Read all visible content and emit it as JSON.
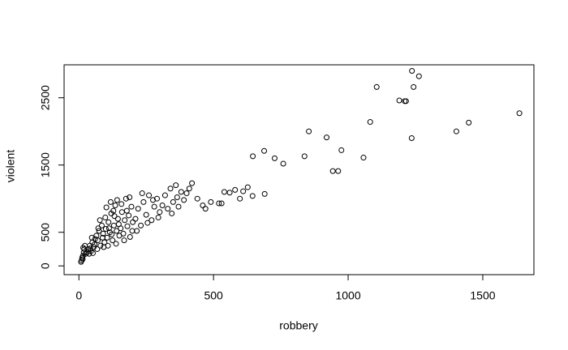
{
  "chart_data": {
    "type": "scatter",
    "xlabel": "robbery",
    "ylabel": "violent",
    "xlim": [
      -55,
      1690
    ],
    "ylim": [
      -130,
      2990
    ],
    "xticks": [
      0,
      500,
      1000,
      1500
    ],
    "yticks": [
      0,
      500,
      1500,
      2500
    ],
    "color": "#000000",
    "x": [
      1636,
      1448,
      1402,
      1263,
      1237,
      1243,
      1106,
      1190,
      1210,
      1215,
      1236,
      1082,
      1057,
      975,
      963,
      943,
      920,
      854,
      838,
      759,
      727,
      688,
      646,
      690,
      645,
      627,
      610,
      598,
      580,
      560,
      540,
      520,
      530,
      490,
      470,
      460,
      440,
      420,
      410,
      400,
      10,
      12,
      15,
      18,
      20,
      22,
      25,
      8,
      14,
      16,
      30,
      35,
      40,
      45,
      50,
      55,
      60,
      38,
      48,
      58,
      42,
      52,
      65,
      70,
      75,
      80,
      85,
      90,
      95,
      100,
      68,
      78,
      88,
      98,
      72,
      92,
      105,
      110,
      115,
      120,
      125,
      130,
      135,
      140,
      145,
      150,
      108,
      118,
      128,
      138,
      148,
      112,
      122,
      132,
      142,
      102,
      155,
      160,
      165,
      170,
      175,
      180,
      185,
      190,
      195,
      200,
      158,
      168,
      178,
      188,
      198,
      210,
      220,
      230,
      240,
      250,
      260,
      270,
      280,
      290,
      300,
      215,
      235,
      255,
      275,
      295,
      310,
      320,
      330,
      340,
      350,
      360,
      370,
      380,
      390,
      345,
      365
    ],
    "y": [
      2270,
      2130,
      2000,
      2820,
      2900,
      2660,
      2660,
      2460,
      2450,
      2450,
      1900,
      2140,
      1610,
      1720,
      1410,
      1410,
      1910,
      2000,
      1630,
      1520,
      1600,
      1710,
      1630,
      1070,
      1040,
      1170,
      1110,
      1000,
      1130,
      1090,
      1100,
      930,
      930,
      950,
      850,
      900,
      1000,
      1230,
      1150,
      1080,
      80,
      120,
      150,
      200,
      250,
      300,
      180,
      60,
      100,
      270,
      200,
      250,
      300,
      220,
      350,
      280,
      400,
      180,
      420,
      320,
      260,
      190,
      450,
      380,
      520,
      300,
      600,
      480,
      350,
      550,
      250,
      680,
      420,
      720,
      560,
      280,
      420,
      650,
      500,
      780,
      380,
      600,
      900,
      520,
      700,
      450,
      300,
      950,
      820,
      330,
      620,
      560,
      470,
      740,
      980,
      870,
      560,
      800,
      480,
      680,
      1000,
      590,
      750,
      430,
      880,
      650,
      920,
      380,
      820,
      1020,
      520,
      700,
      850,
      600,
      950,
      760,
      1050,
      680,
      880,
      1000,
      800,
      520,
      1080,
      640,
      980,
      720,
      900,
      1050,
      850,
      1150,
      950,
      1200,
      880,
      1100,
      980,
      780,
      1020
    ]
  }
}
